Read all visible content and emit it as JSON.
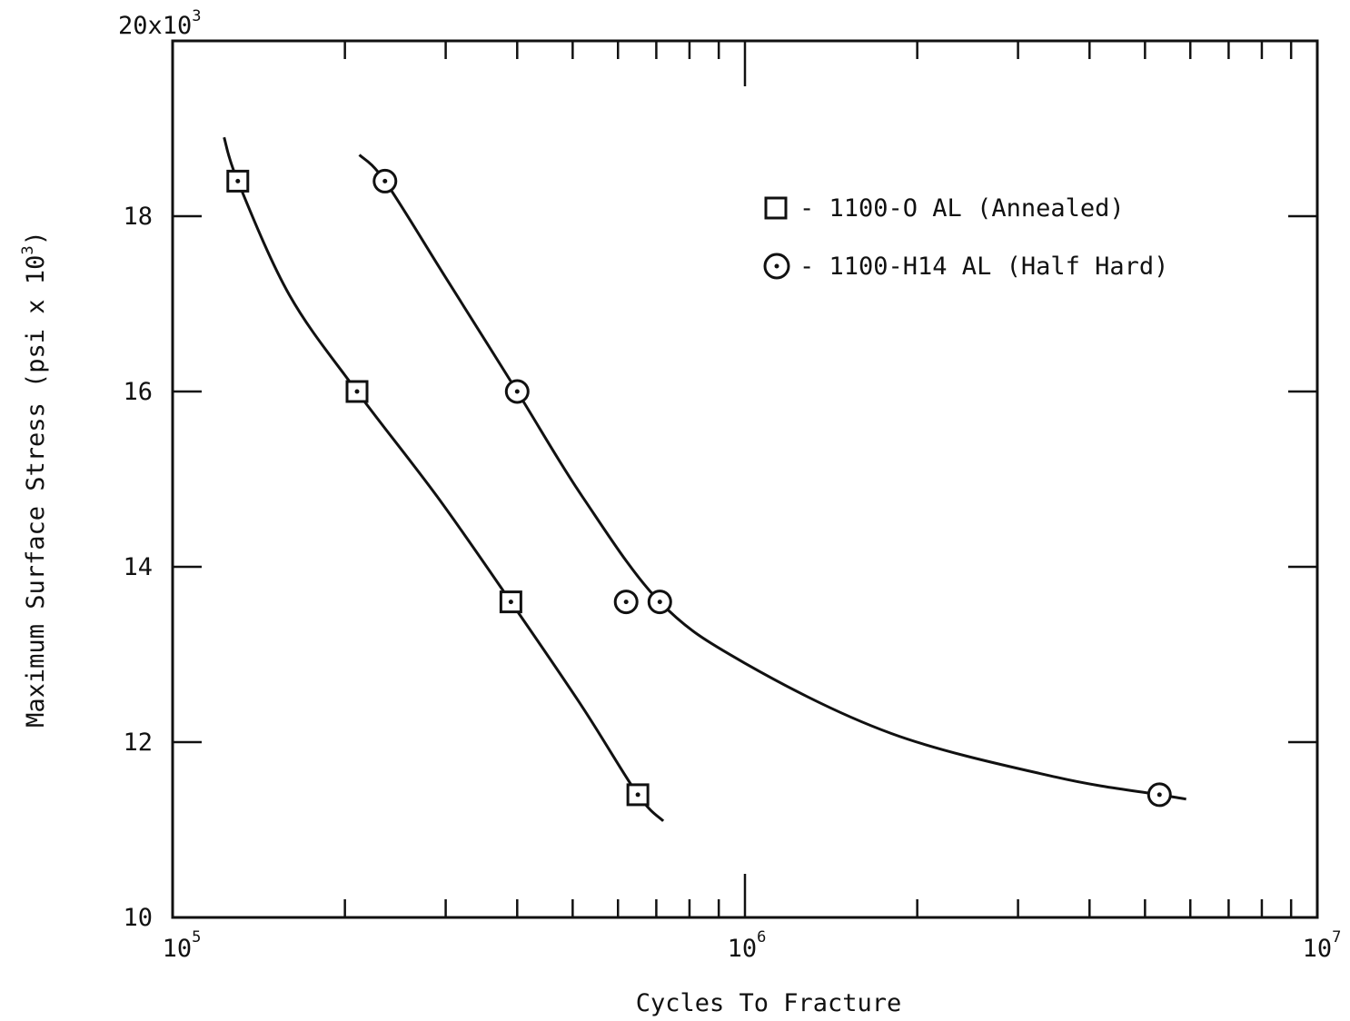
{
  "chart_data": {
    "type": "line",
    "title": "",
    "xlabel": "Cycles To Fracture",
    "ylabel": "Maximum Surface Stress (psi x 10",
    "ylabel_exp": "3",
    "xscale": "log",
    "xlim": [
      100000,
      10000000
    ],
    "ylim": [
      10000,
      20000
    ],
    "x_ticks": [
      {
        "base": "10",
        "exp": "5"
      },
      {
        "base": "10",
        "exp": "6"
      },
      {
        "base": "10",
        "exp": "7"
      }
    ],
    "y_ticks": [
      {
        "value": 10000,
        "label": "10"
      },
      {
        "value": 12000,
        "label": "12"
      },
      {
        "value": 14000,
        "label": "14"
      },
      {
        "value": 16000,
        "label": "16"
      },
      {
        "value": 18000,
        "label": "18"
      }
    ],
    "y_top_label": {
      "base": "20x10",
      "exp": "3"
    },
    "legend_position": "top-right",
    "grid": false,
    "series": [
      {
        "name": "- 1100-O AL (Annealed)",
        "marker": "square",
        "points": [
          {
            "x": 130000,
            "y": 18400
          },
          {
            "x": 210000,
            "y": 16000
          },
          {
            "x": 390000,
            "y": 13600
          },
          {
            "x": 650000,
            "y": 11400
          }
        ],
        "curve": [
          {
            "x": 123000,
            "y": 18900
          },
          {
            "x": 130000,
            "y": 18400
          },
          {
            "x": 160000,
            "y": 17100
          },
          {
            "x": 210000,
            "y": 16000
          },
          {
            "x": 290000,
            "y": 14800
          },
          {
            "x": 390000,
            "y": 13600
          },
          {
            "x": 520000,
            "y": 12400
          },
          {
            "x": 650000,
            "y": 11400
          },
          {
            "x": 720000,
            "y": 11100
          }
        ]
      },
      {
        "name": "- 1100-H14 AL (Half Hard)",
        "marker": "circle",
        "points": [
          {
            "x": 235000,
            "y": 18400
          },
          {
            "x": 400000,
            "y": 16000
          },
          {
            "x": 620000,
            "y": 13600
          },
          {
            "x": 710000,
            "y": 13600
          },
          {
            "x": 5300000,
            "y": 11400
          }
        ],
        "curve": [
          {
            "x": 212000,
            "y": 18700
          },
          {
            "x": 235000,
            "y": 18400
          },
          {
            "x": 300000,
            "y": 17300
          },
          {
            "x": 400000,
            "y": 16000
          },
          {
            "x": 520000,
            "y": 14800
          },
          {
            "x": 710000,
            "y": 13600
          },
          {
            "x": 1000000,
            "y": 12900
          },
          {
            "x": 1800000,
            "y": 12100
          },
          {
            "x": 3500000,
            "y": 11600
          },
          {
            "x": 5300000,
            "y": 11400
          },
          {
            "x": 5900000,
            "y": 11350
          }
        ]
      }
    ]
  }
}
